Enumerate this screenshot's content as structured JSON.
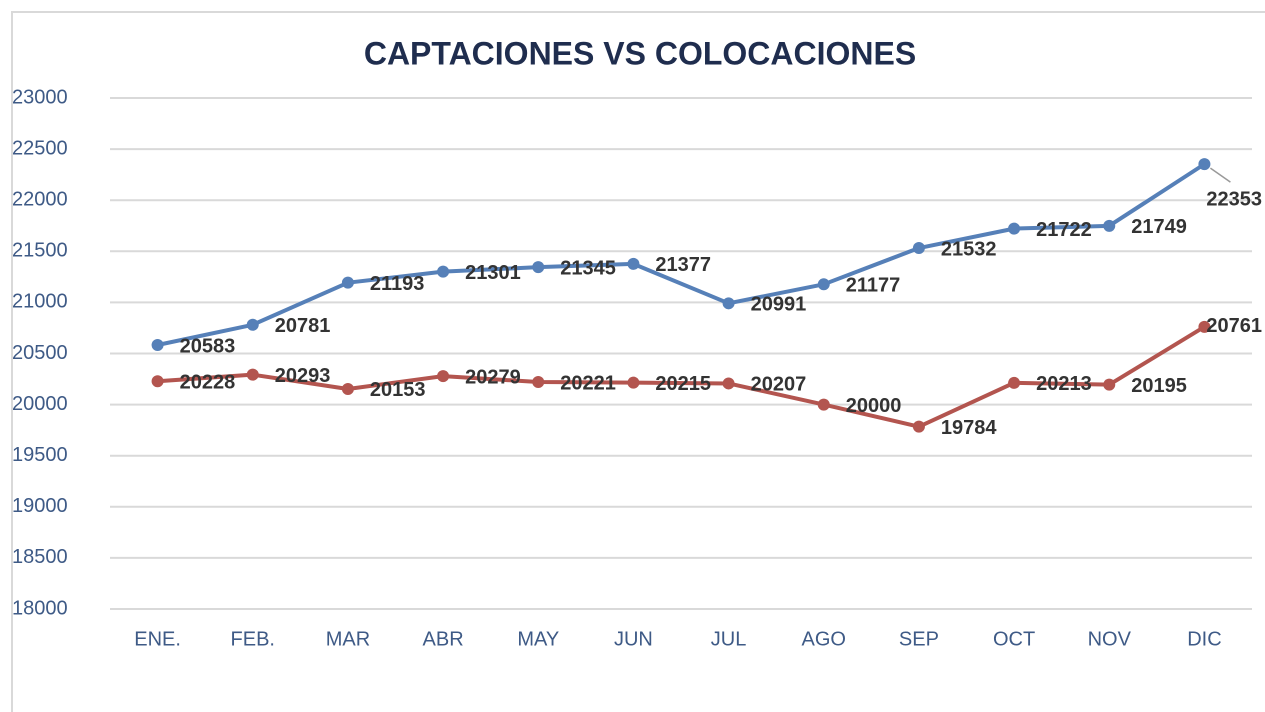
{
  "chart_data": {
    "type": "line",
    "title": "CAPTACIONES VS COLOCACIONES",
    "categories": [
      "ENE.",
      "FEB.",
      "MAR",
      "ABR",
      "MAY",
      "JUN",
      "JUL",
      "AGO",
      "SEP",
      "OCT",
      "NOV",
      "DIC"
    ],
    "series": [
      {
        "color": "#5680b8",
        "values": [
          20583,
          20781,
          21193,
          21301,
          21345,
          21377,
          20991,
          21177,
          21532,
          21722,
          21749,
          22353
        ]
      },
      {
        "color": "#b3554f",
        "values": [
          20228,
          20293,
          20153,
          20279,
          20221,
          20215,
          20207,
          20000,
          19784,
          20213,
          20195,
          20761
        ]
      }
    ],
    "ylim": [
      18000,
      23000
    ],
    "yticks": [
      18000,
      18500,
      19000,
      19500,
      20000,
      20500,
      21000,
      21500,
      22000,
      22500,
      23000
    ],
    "grid": true,
    "data_labels": true
  }
}
